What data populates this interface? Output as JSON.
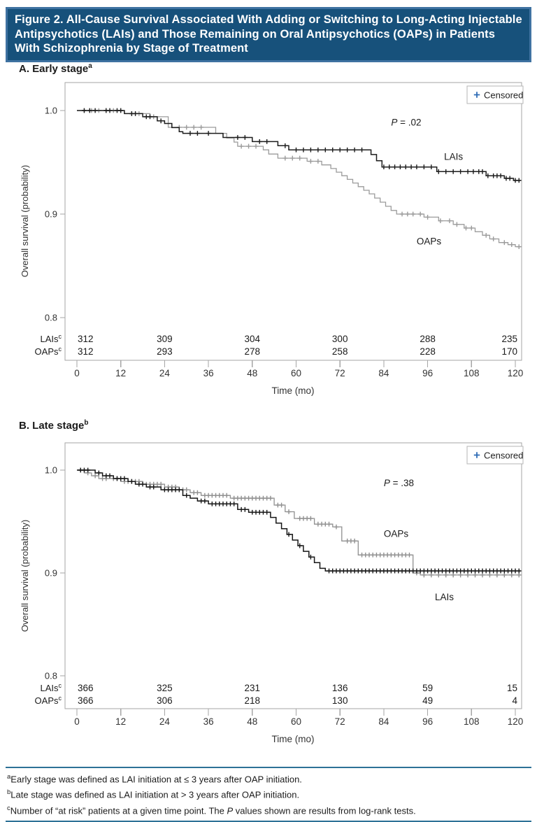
{
  "figure_title": "Figure 2. All-Cause Survival Associated With Adding or Switching to Long-Acting Injectable Antipsychotics (LAIs) and Those Remaining on Oral Antipsychotics (OAPs) in Patients With Schizophrenia by Stage of Treatment",
  "colors": {
    "title_bg": "#17517b",
    "title_border": "#3f72a1",
    "rule_blue": "#2d7196",
    "axis_gray": "#a6a6a6",
    "text_dark": "#1a1a1a",
    "legend_plus_blue": "#2e6cb6",
    "lais_black": "#1c1c1c",
    "oaps_gray": "#9b9b9b"
  },
  "chart_data": [
    {
      "id": "A",
      "type": "line",
      "subtype": "kaplan-meier-step",
      "heading": "A. Early stage",
      "heading_sup": "a",
      "xlabel": "Time (mo)",
      "ylabel": "Overall survival (probability)",
      "xticks": [
        0,
        12,
        24,
        36,
        48,
        60,
        72,
        84,
        96,
        108,
        120
      ],
      "yticks": [
        1.0,
        0.9,
        0.8
      ],
      "xlim": [
        0,
        126
      ],
      "ylim": [
        0.76,
        1.03
      ],
      "t_max": 121.5,
      "legend_label": "Censored",
      "legend_marker": "+",
      "annotation": {
        "italic": "P",
        "rest": " = .02",
        "t": 86,
        "p": 0.9855
      },
      "series": [
        {
          "name": "OAPs",
          "color": "#9b9b9b",
          "width": 1.3,
          "label": {
            "text": "OAPs",
            "t": 93,
            "p": 0.8705
          },
          "steps": [
            [
              0,
              1.0
            ],
            [
              13,
              0.997
            ],
            [
              20,
              0.994
            ],
            [
              25,
              0.9838
            ],
            [
              38,
              0.978
            ],
            [
              41,
              0.9735
            ],
            [
              43,
              0.9695
            ],
            [
              44,
              0.9655
            ],
            [
              51,
              0.962
            ],
            [
              52.5,
              0.958
            ],
            [
              55,
              0.954
            ],
            [
              63,
              0.951
            ],
            [
              67,
              0.9475
            ],
            [
              69.5,
              0.944
            ],
            [
              71,
              0.9405
            ],
            [
              72.5,
              0.937
            ],
            [
              74,
              0.9335
            ],
            [
              75.5,
              0.93
            ],
            [
              77,
              0.9265
            ],
            [
              78.5,
              0.923
            ],
            [
              80,
              0.9195
            ],
            [
              81.5,
              0.9155
            ],
            [
              83,
              0.9115
            ],
            [
              84.5,
              0.9075
            ],
            [
              86,
              0.9035
            ],
            [
              87.5,
              0.9
            ],
            [
              95,
              0.897
            ],
            [
              99,
              0.8935
            ],
            [
              103,
              0.89
            ],
            [
              106,
              0.8865
            ],
            [
              109,
              0.883
            ],
            [
              111,
              0.8795
            ],
            [
              113,
              0.876
            ],
            [
              115.5,
              0.8725
            ],
            [
              118,
              0.8705
            ],
            [
              120,
              0.8685
            ]
          ],
          "censors": [
            2,
            4,
            6,
            8,
            10,
            12,
            15,
            17,
            21,
            28,
            30,
            32,
            34,
            45,
            47,
            49,
            57,
            59,
            61,
            64,
            66,
            89,
            90.5,
            92,
            94,
            96,
            99.5,
            102,
            104,
            106.5,
            108,
            112,
            114,
            117,
            119,
            121
          ]
        },
        {
          "name": "LAIs",
          "color": "#1c1c1c",
          "width": 1.5,
          "label": {
            "text": "LAIs",
            "t": 100.5,
            "p": 0.9525
          },
          "steps": [
            [
              0,
              1.0
            ],
            [
              13,
              0.997
            ],
            [
              18,
              0.994
            ],
            [
              22,
              0.99
            ],
            [
              24,
              0.9875
            ],
            [
              26,
              0.9835
            ],
            [
              28,
              0.9795
            ],
            [
              29,
              0.978
            ],
            [
              40,
              0.974
            ],
            [
              48,
              0.97
            ],
            [
              55,
              0.966
            ],
            [
              58,
              0.962
            ],
            [
              80.5,
              0.9575
            ],
            [
              82,
              0.9515
            ],
            [
              83.5,
              0.9455
            ],
            [
              98.5,
              0.941
            ],
            [
              112,
              0.937
            ],
            [
              117,
              0.9345
            ],
            [
              119.5,
              0.9325
            ]
          ],
          "censors": [
            2,
            3.5,
            5,
            8,
            9,
            11,
            12,
            15,
            16,
            19,
            20,
            23,
            31,
            33,
            36,
            44,
            46,
            50,
            52,
            57,
            60,
            62,
            64,
            66,
            68,
            70,
            72,
            74,
            76,
            78,
            84,
            85.5,
            87,
            88.5,
            90,
            91.5,
            93,
            95,
            97,
            99,
            101,
            103,
            105,
            107,
            108.5,
            110,
            111,
            112.5,
            114,
            115,
            116,
            117.5,
            118.5,
            120,
            121
          ]
        }
      ],
      "at_risk": {
        "times": [
          0,
          24,
          48,
          72,
          96,
          120
        ],
        "rows": [
          {
            "label": "LAIs",
            "sup": "c",
            "values": [
              "312",
              "309",
              "304",
              "300",
              "288",
              "235"
            ]
          },
          {
            "label": "OAPs",
            "sup": "c",
            "values": [
              "312",
              "293",
              "278",
              "258",
              "228",
              "170"
            ]
          }
        ]
      }
    },
    {
      "id": "B",
      "type": "line",
      "subtype": "kaplan-meier-step",
      "heading": "B. Late stage",
      "heading_sup": "b",
      "xlabel": "Time (mo)",
      "ylabel": "Overall survival (probability)",
      "xticks": [
        0,
        12,
        24,
        36,
        48,
        60,
        72,
        84,
        96,
        108,
        120
      ],
      "yticks": [
        1.0,
        0.9,
        0.8
      ],
      "xlim": [
        0,
        126
      ],
      "ylim": [
        0.76,
        1.03
      ],
      "t_max": 121.5,
      "legend_label": "Censored",
      "legend_marker": "+",
      "annotation": {
        "italic": "P",
        "rest": " = .38",
        "t": 84,
        "p": 0.9845
      },
      "series": [
        {
          "name": "OAPs",
          "color": "#8f8f8f",
          "width": 1.3,
          "label": {
            "text": "OAPs",
            "t": 84,
            "p": 0.935
          },
          "steps": [
            [
              0,
              1.0
            ],
            [
              2,
              0.9973
            ],
            [
              4,
              0.9945
            ],
            [
              6,
              0.9918
            ],
            [
              12,
              0.989
            ],
            [
              18,
              0.9863
            ],
            [
              24,
              0.9836
            ],
            [
              28,
              0.9809
            ],
            [
              31,
              0.9781
            ],
            [
              34,
              0.9754
            ],
            [
              42,
              0.9727
            ],
            [
              54,
              0.966
            ],
            [
              57,
              0.9595
            ],
            [
              59.5,
              0.953
            ],
            [
              65,
              0.9475
            ],
            [
              70,
              0.9448
            ],
            [
              72.5,
              0.9311
            ],
            [
              77,
              0.9175
            ],
            [
              92,
              0.9
            ],
            [
              94,
              0.898
            ]
          ],
          "censors": [
            1,
            3,
            5,
            7,
            8,
            10,
            11,
            13,
            14,
            15,
            16,
            17,
            19,
            20,
            21,
            22,
            23,
            25,
            26,
            27,
            29,
            30,
            32,
            33,
            35,
            36,
            37,
            38,
            39,
            40,
            41,
            43,
            44,
            45,
            46,
            47,
            48,
            49,
            50,
            51,
            52,
            53,
            55,
            56,
            58,
            61,
            62,
            63,
            64,
            66,
            67,
            68,
            69,
            71,
            74,
            75,
            76,
            78,
            79,
            80,
            81,
            82,
            83,
            84,
            85,
            86,
            87,
            88,
            89,
            90,
            91,
            93,
            95,
            97,
            99,
            101,
            103,
            105,
            107,
            109,
            111,
            113,
            115,
            117,
            119,
            121
          ]
        },
        {
          "name": "LAIs",
          "color": "#161616",
          "width": 1.5,
          "label": {
            "text": "LAIs",
            "t": 98,
            "p": 0.8735
          },
          "steps": [
            [
              0,
              1.0
            ],
            [
              5,
              0.9973
            ],
            [
              7,
              0.9945
            ],
            [
              10,
              0.9918
            ],
            [
              14,
              0.989
            ],
            [
              16,
              0.9863
            ],
            [
              19,
              0.9836
            ],
            [
              23,
              0.9809
            ],
            [
              29,
              0.9754
            ],
            [
              31,
              0.9727
            ],
            [
              33,
              0.97
            ],
            [
              36,
              0.9672
            ],
            [
              44,
              0.9617
            ],
            [
              47,
              0.959
            ],
            [
              53,
              0.954
            ],
            [
              54.5,
              0.9485
            ],
            [
              56,
              0.943
            ],
            [
              57.5,
              0.9375
            ],
            [
              59,
              0.932
            ],
            [
              60.5,
              0.9265
            ],
            [
              62,
              0.921
            ],
            [
              63.5,
              0.9155
            ],
            [
              65,
              0.91
            ],
            [
              66.5,
              0.9045
            ],
            [
              68,
              0.902
            ]
          ],
          "censors": [
            1,
            2,
            3,
            6,
            8,
            9,
            11,
            12,
            13,
            15,
            17,
            18,
            20,
            21,
            24,
            25,
            26,
            27,
            28,
            30,
            34,
            35,
            37,
            38,
            39,
            40,
            41,
            42,
            43,
            45,
            46,
            48,
            49,
            50,
            51,
            52,
            58,
            61,
            64,
            69,
            70,
            71,
            72,
            73,
            74,
            75,
            76,
            77,
            78,
            79,
            80,
            81,
            82,
            83,
            84,
            85,
            86,
            87,
            88,
            89,
            90,
            91,
            92,
            93,
            94,
            95,
            96,
            97,
            98,
            99,
            100,
            101,
            102,
            103,
            104,
            105,
            106,
            107,
            108,
            109,
            110,
            111,
            112,
            113,
            114,
            115,
            116,
            117,
            118,
            119,
            120,
            121
          ]
        }
      ],
      "at_risk": {
        "times": [
          0,
          24,
          48,
          72,
          96,
          120
        ],
        "rows": [
          {
            "label": "LAIs",
            "sup": "c",
            "values": [
              "366",
              "325",
              "231",
              "136",
              "59",
              "15"
            ]
          },
          {
            "label": "OAPs",
            "sup": "c",
            "values": [
              "366",
              "306",
              "218",
              "130",
              "49",
              "4"
            ]
          }
        ]
      }
    }
  ],
  "footnotes": [
    {
      "sup": "a",
      "pre": "Early stage was defined as LAI initiation at ≤ 3 years after OAP initiation.",
      "italic": "",
      "post": ""
    },
    {
      "sup": "b",
      "pre": "Late stage was defined as LAI initiation at > 3 years after OAP initiation.",
      "italic": "",
      "post": ""
    },
    {
      "sup": "c",
      "pre": "Number of “at risk” patients at a given time point. The ",
      "italic": "P",
      "post": " values shown are results from log-rank tests."
    }
  ]
}
